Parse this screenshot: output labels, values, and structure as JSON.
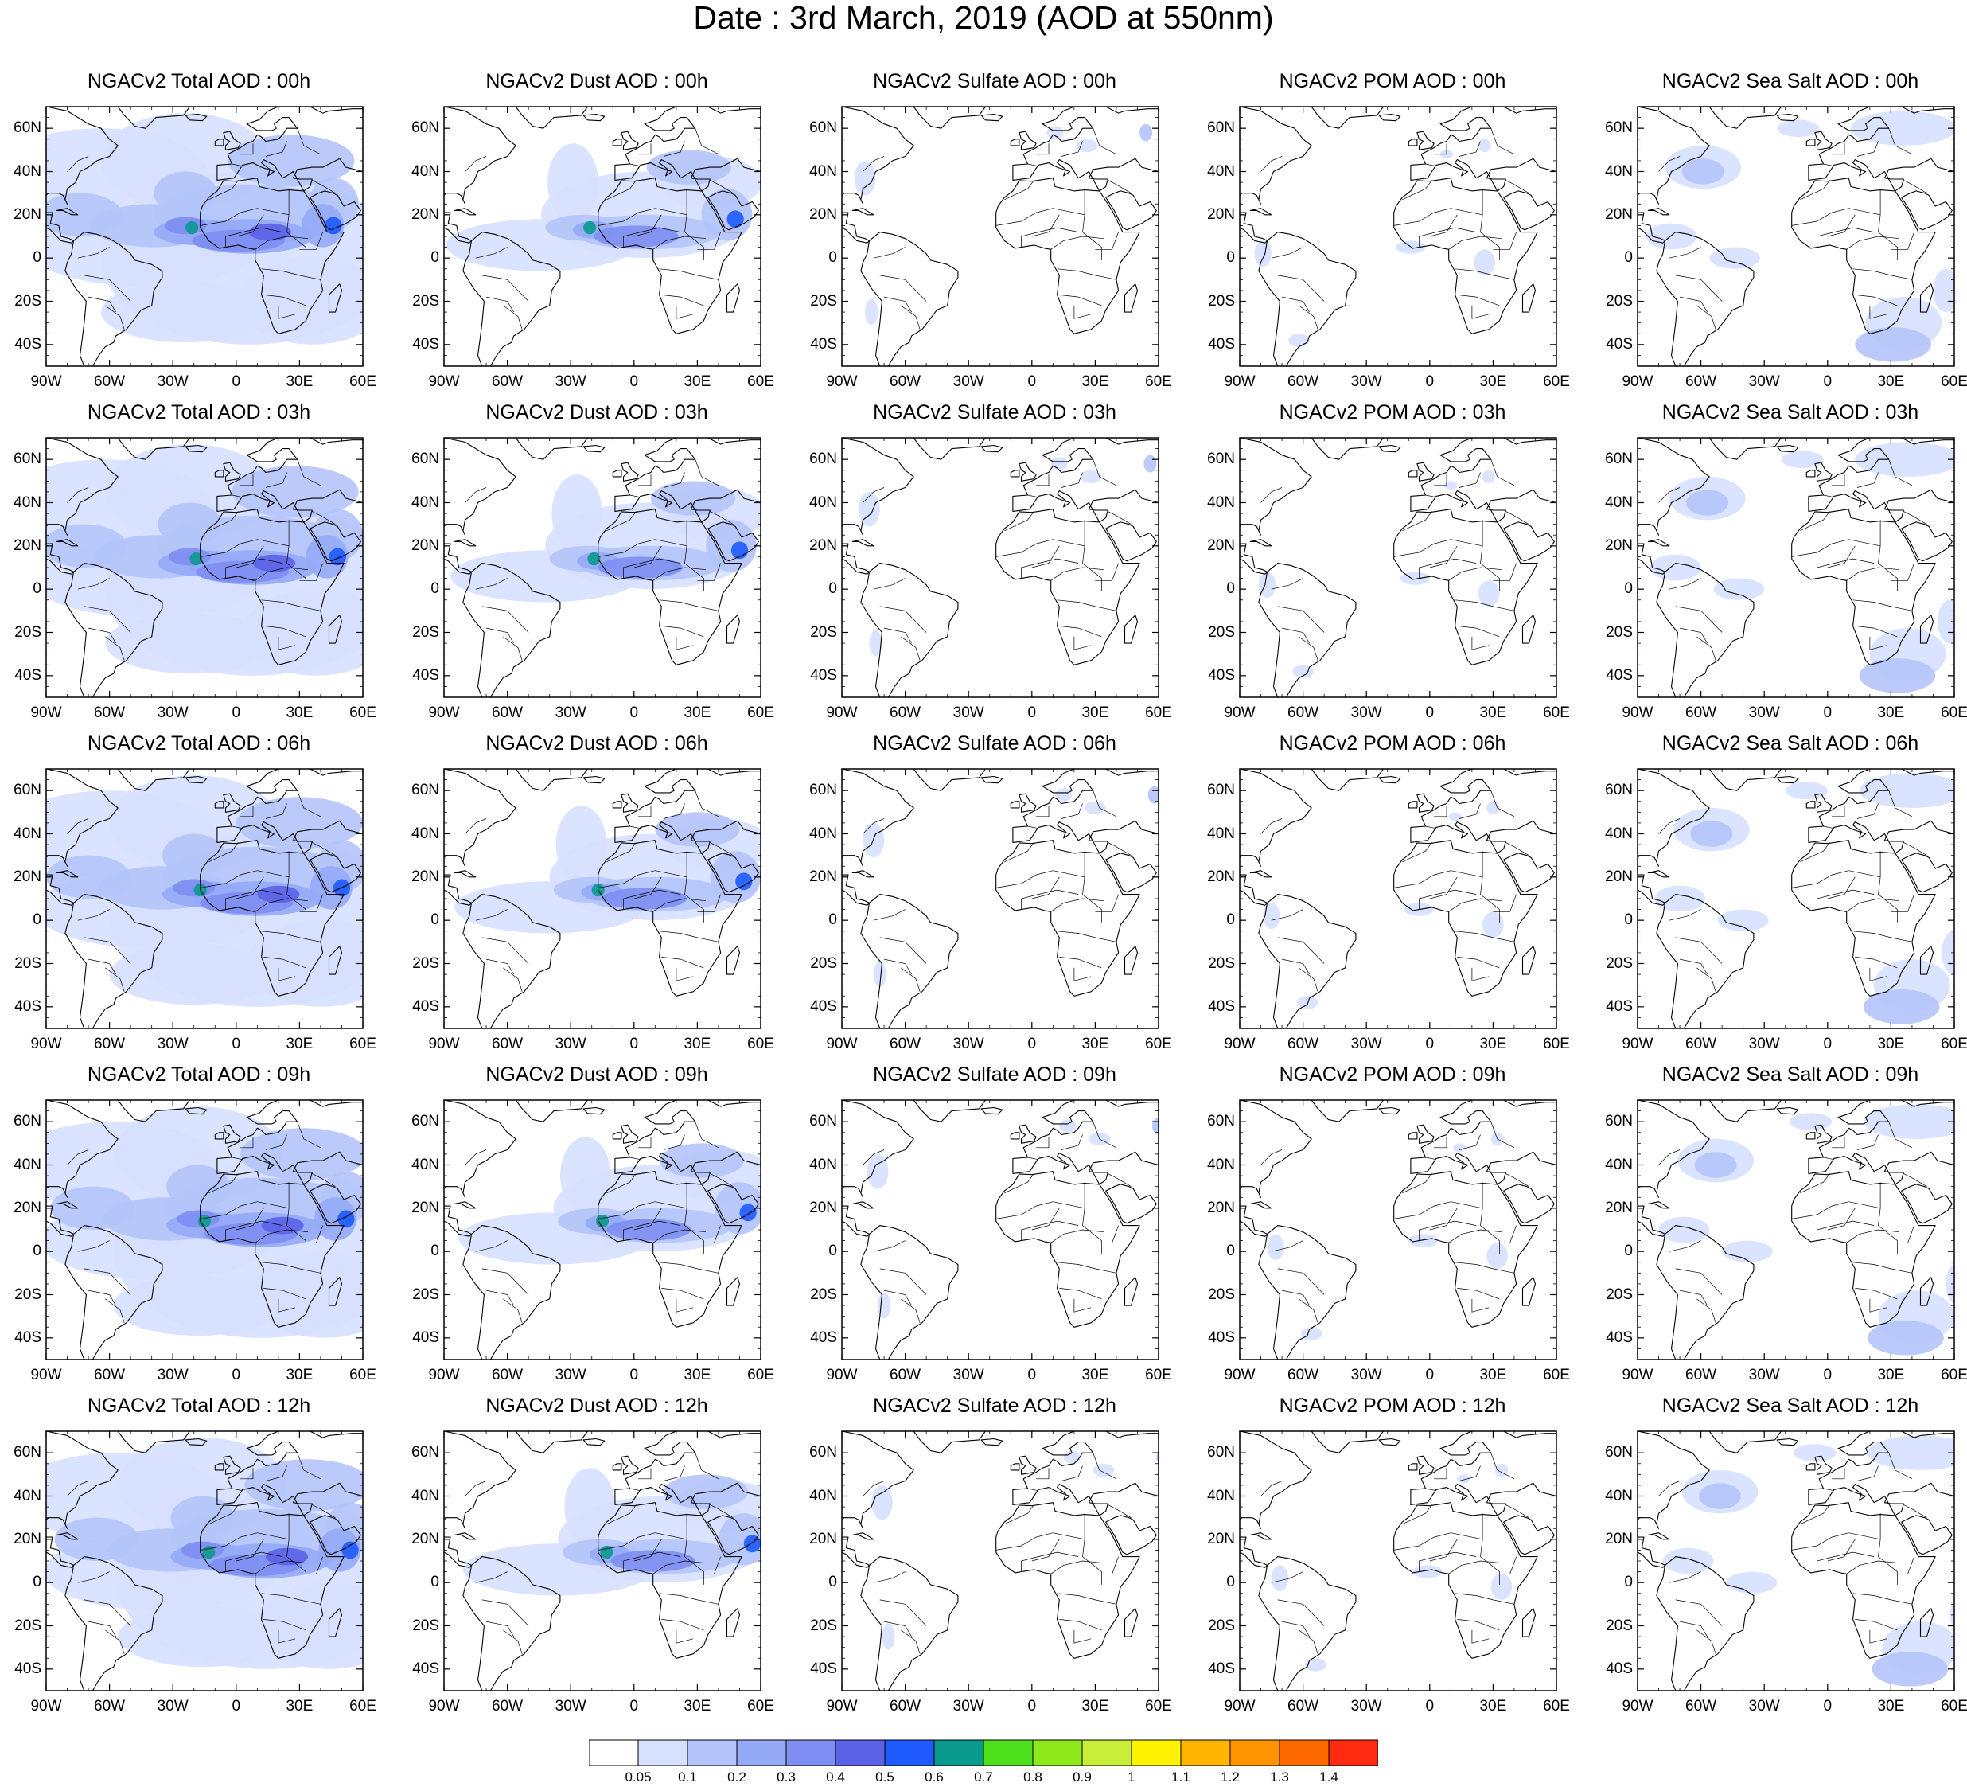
{
  "title": "Date : 3rd March, 2019 (AOD at 550nm)",
  "species": [
    {
      "key": "total",
      "label": "NGACv2 Total AOD"
    },
    {
      "key": "dust",
      "label": "NGACv2 Dust AOD"
    },
    {
      "key": "sulfate",
      "label": "NGACv2 Sulfate AOD"
    },
    {
      "key": "pom",
      "label": "NGACv2 POM AOD"
    },
    {
      "key": "seasalt",
      "label": "NGACv2 Sea Salt AOD"
    }
  ],
  "hours": [
    "00h",
    "03h",
    "06h",
    "09h",
    "12h"
  ],
  "panel_titles": [
    [
      "NGACv2 Total AOD : 00h",
      "NGACv2 Dust AOD : 00h",
      "NGACv2 Sulfate AOD : 00h",
      "NGACv2 POM AOD : 00h",
      "NGACv2 Sea Salt AOD : 00h"
    ],
    [
      "NGACv2 Total AOD : 03h",
      "NGACv2 Dust AOD : 03h",
      "NGACv2 Sulfate AOD : 03h",
      "NGACv2 POM AOD : 03h",
      "NGACv2 Sea Salt AOD : 03h"
    ],
    [
      "NGACv2 Total AOD : 06h",
      "NGACv2 Dust AOD : 06h",
      "NGACv2 Sulfate AOD : 06h",
      "NGACv2 POM AOD : 06h",
      "NGACv2 Sea Salt AOD : 06h"
    ],
    [
      "NGACv2 Total AOD : 09h",
      "NGACv2 Dust AOD : 09h",
      "NGACv2 Sulfate AOD : 09h",
      "NGACv2 POM AOD : 09h",
      "NGACv2 Sea Salt  AOD : 09h"
    ],
    [
      "NGACv2 Total AOD  : 12h",
      "NGACv2 Dust AOD : 12h",
      "NGACv2 Sulfate AOD : 12h",
      "NGACv2 POM  AOD : 12h",
      "NGACv2 Sea Salt  AOD : 12h"
    ]
  ],
  "lat_labels": [
    "60N",
    "40N",
    "20N",
    "0",
    "20S",
    "40S"
  ],
  "lon_labels": [
    "90W",
    "60W",
    "30W",
    "0",
    "30E",
    "60E"
  ],
  "colorbar": {
    "labels": [
      "0.05",
      "0.1",
      "0.2",
      "0.3",
      "0.4",
      "0.5",
      "0.6",
      "0.7",
      "0.8",
      "0.9",
      "1",
      "1.1",
      "1.2",
      "1.3",
      "1.4"
    ],
    "colors": [
      "#ffffff",
      "#d6e0ff",
      "#b4c4fa",
      "#95aaf7",
      "#7e8ef2",
      "#5b62e6",
      "#1e5aff",
      "#0a9a8e",
      "#4ee01c",
      "#8ee81a",
      "#c8ee3a",
      "#fff200",
      "#ffb400",
      "#ff9400",
      "#ff6a00",
      "#ff2a10"
    ]
  },
  "map_extent": {
    "lon_min": -90,
    "lon_max": 60,
    "lat_min": -50,
    "lat_max": 70
  }
}
